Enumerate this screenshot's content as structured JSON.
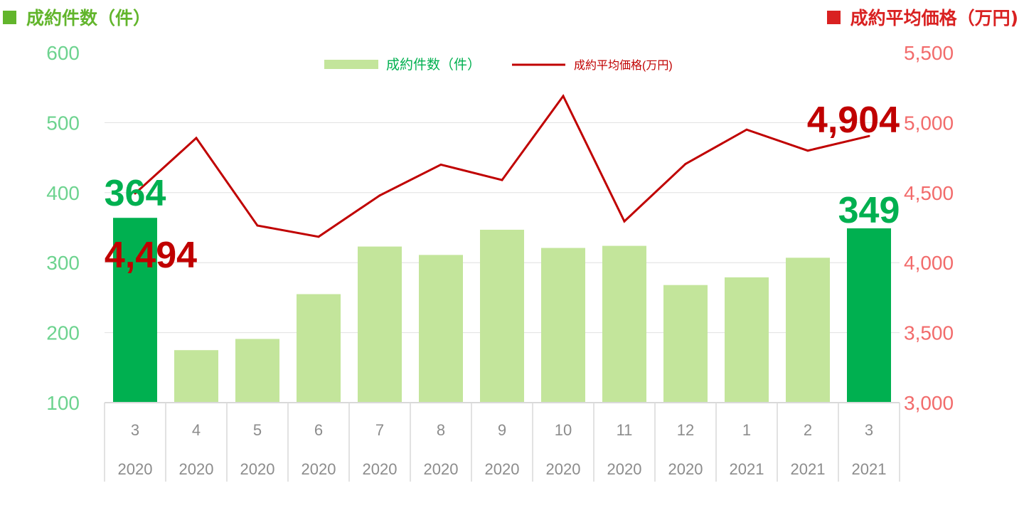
{
  "header": {
    "left_title": "成約件数（件）",
    "right_title": "成約平均価格（万円)"
  },
  "colors": {
    "bar_normal": "#c3e59b",
    "bar_highlight": "#00b050",
    "line": "#c00000",
    "left_axis": "#6dd38f",
    "right_axis": "#f26b6b",
    "header_left": "#62b52c",
    "header_right": "#d92121",
    "gridline": "#e0e0e0",
    "category_text": "#8c8c8c"
  },
  "chart_data": {
    "type": "bar",
    "categories": [
      {
        "month": "3",
        "year": "2020"
      },
      {
        "month": "4",
        "year": "2020"
      },
      {
        "month": "5",
        "year": "2020"
      },
      {
        "month": "6",
        "year": "2020"
      },
      {
        "month": "7",
        "year": "2020"
      },
      {
        "month": "8",
        "year": "2020"
      },
      {
        "month": "9",
        "year": "2020"
      },
      {
        "month": "10",
        "year": "2020"
      },
      {
        "month": "11",
        "year": "2020"
      },
      {
        "month": "12",
        "year": "2020"
      },
      {
        "month": "1",
        "year": "2021"
      },
      {
        "month": "2",
        "year": "2021"
      },
      {
        "month": "3",
        "year": "2021"
      }
    ],
    "series": [
      {
        "name": "成約件数（件）",
        "type": "bar",
        "axis": "left",
        "values": [
          364,
          175,
          191,
          255,
          323,
          311,
          347,
          321,
          324,
          268,
          279,
          307,
          349
        ],
        "highlight": [
          true,
          false,
          false,
          false,
          false,
          false,
          false,
          false,
          false,
          false,
          false,
          false,
          true
        ]
      },
      {
        "name": "成約平均価格(万円)",
        "type": "line",
        "axis": "right",
        "values": [
          4494,
          4890,
          4265,
          4185,
          4480,
          4700,
          4590,
          5190,
          4295,
          4705,
          4950,
          4800,
          4904
        ]
      }
    ],
    "left_axis": {
      "range": [
        100,
        600
      ],
      "ticks": [
        "100",
        "200",
        "300",
        "400",
        "500",
        "600"
      ]
    },
    "right_axis": {
      "range": [
        3000,
        5500
      ],
      "ticks": [
        "3,000",
        "3,500",
        "4,000",
        "4,500",
        "5,000",
        "5,500"
      ]
    },
    "grid": true,
    "legend_position": "top-center",
    "annotations": [
      {
        "label": "364",
        "color": "green",
        "target": "first-bar"
      },
      {
        "label": "4,494",
        "color": "red",
        "target": "first-line-point"
      },
      {
        "label": "4,904",
        "color": "red",
        "target": "last-line-point"
      },
      {
        "label": "349",
        "color": "green",
        "target": "last-bar"
      }
    ]
  }
}
